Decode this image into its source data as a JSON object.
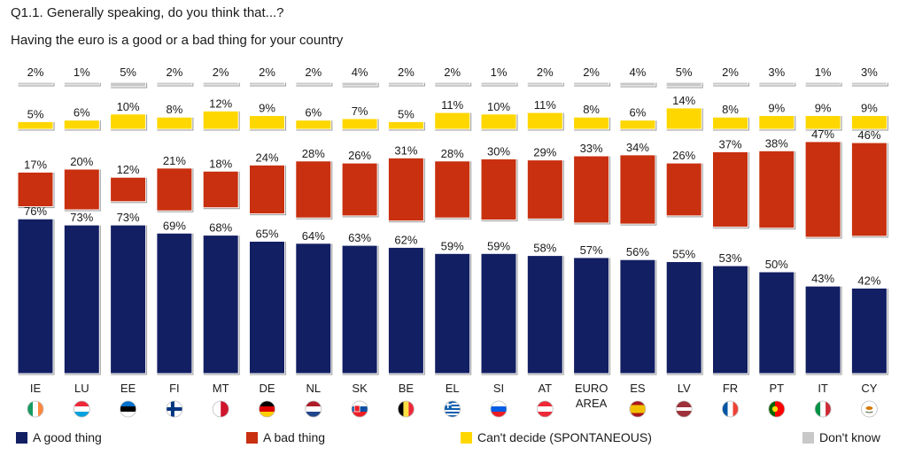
{
  "question": {
    "title": "Q1.1. Generally speaking, do you think that...?",
    "subtitle": "Having the euro is a good or a bad thing for your country"
  },
  "chart_data": {
    "type": "bar",
    "title": "Having the euro is a good or a bad thing for your country",
    "categories": [
      "IE",
      "LU",
      "EE",
      "FI",
      "MT",
      "DE",
      "NL",
      "SK",
      "BE",
      "EL",
      "SI",
      "AT",
      "EURO AREA",
      "ES",
      "LV",
      "FR",
      "PT",
      "IT",
      "CY"
    ],
    "series": [
      {
        "name": "A good thing",
        "color": "#131f63",
        "values": [
          76,
          73,
          73,
          69,
          68,
          65,
          64,
          63,
          62,
          59,
          59,
          58,
          57,
          56,
          55,
          53,
          50,
          43,
          42
        ]
      },
      {
        "name": "A bad thing",
        "color": "#c8300f",
        "values": [
          17,
          20,
          12,
          21,
          18,
          24,
          28,
          26,
          31,
          28,
          30,
          29,
          33,
          34,
          26,
          37,
          38,
          47,
          46
        ]
      },
      {
        "name": "Can't decide (SPONTANEOUS)",
        "color": "#ffd700",
        "values": [
          5,
          6,
          10,
          8,
          12,
          9,
          6,
          7,
          5,
          11,
          10,
          11,
          8,
          6,
          14,
          8,
          9,
          9,
          9
        ]
      },
      {
        "name": "Don't know",
        "color": "#c8c8c8",
        "values": [
          2,
          1,
          5,
          2,
          2,
          2,
          2,
          4,
          2,
          2,
          1,
          2,
          2,
          4,
          5,
          2,
          3,
          1,
          3
        ]
      }
    ],
    "unit": "%",
    "ylim": [
      0,
      100
    ]
  },
  "flags": [
    "ireland-flag-icon",
    "luxembourg-flag-icon",
    "estonia-flag-icon",
    "finland-flag-icon",
    "malta-flag-icon",
    "germany-flag-icon",
    "netherlands-flag-icon",
    "slovakia-flag-icon",
    "belgium-flag-icon",
    "greece-flag-icon",
    "slovenia-flag-icon",
    "austria-flag-icon",
    "",
    "spain-flag-icon",
    "latvia-flag-icon",
    "france-flag-icon",
    "portugal-flag-icon",
    "italy-flag-icon",
    "cyprus-flag-icon"
  ],
  "legend": [
    {
      "label": "A good thing",
      "color": "#131f63"
    },
    {
      "label": "A bad thing",
      "color": "#c8300f"
    },
    {
      "label": "Can't decide (SPONTANEOUS)",
      "color": "#ffd700"
    },
    {
      "label": "Don't know",
      "color": "#c8c8c8"
    }
  ]
}
